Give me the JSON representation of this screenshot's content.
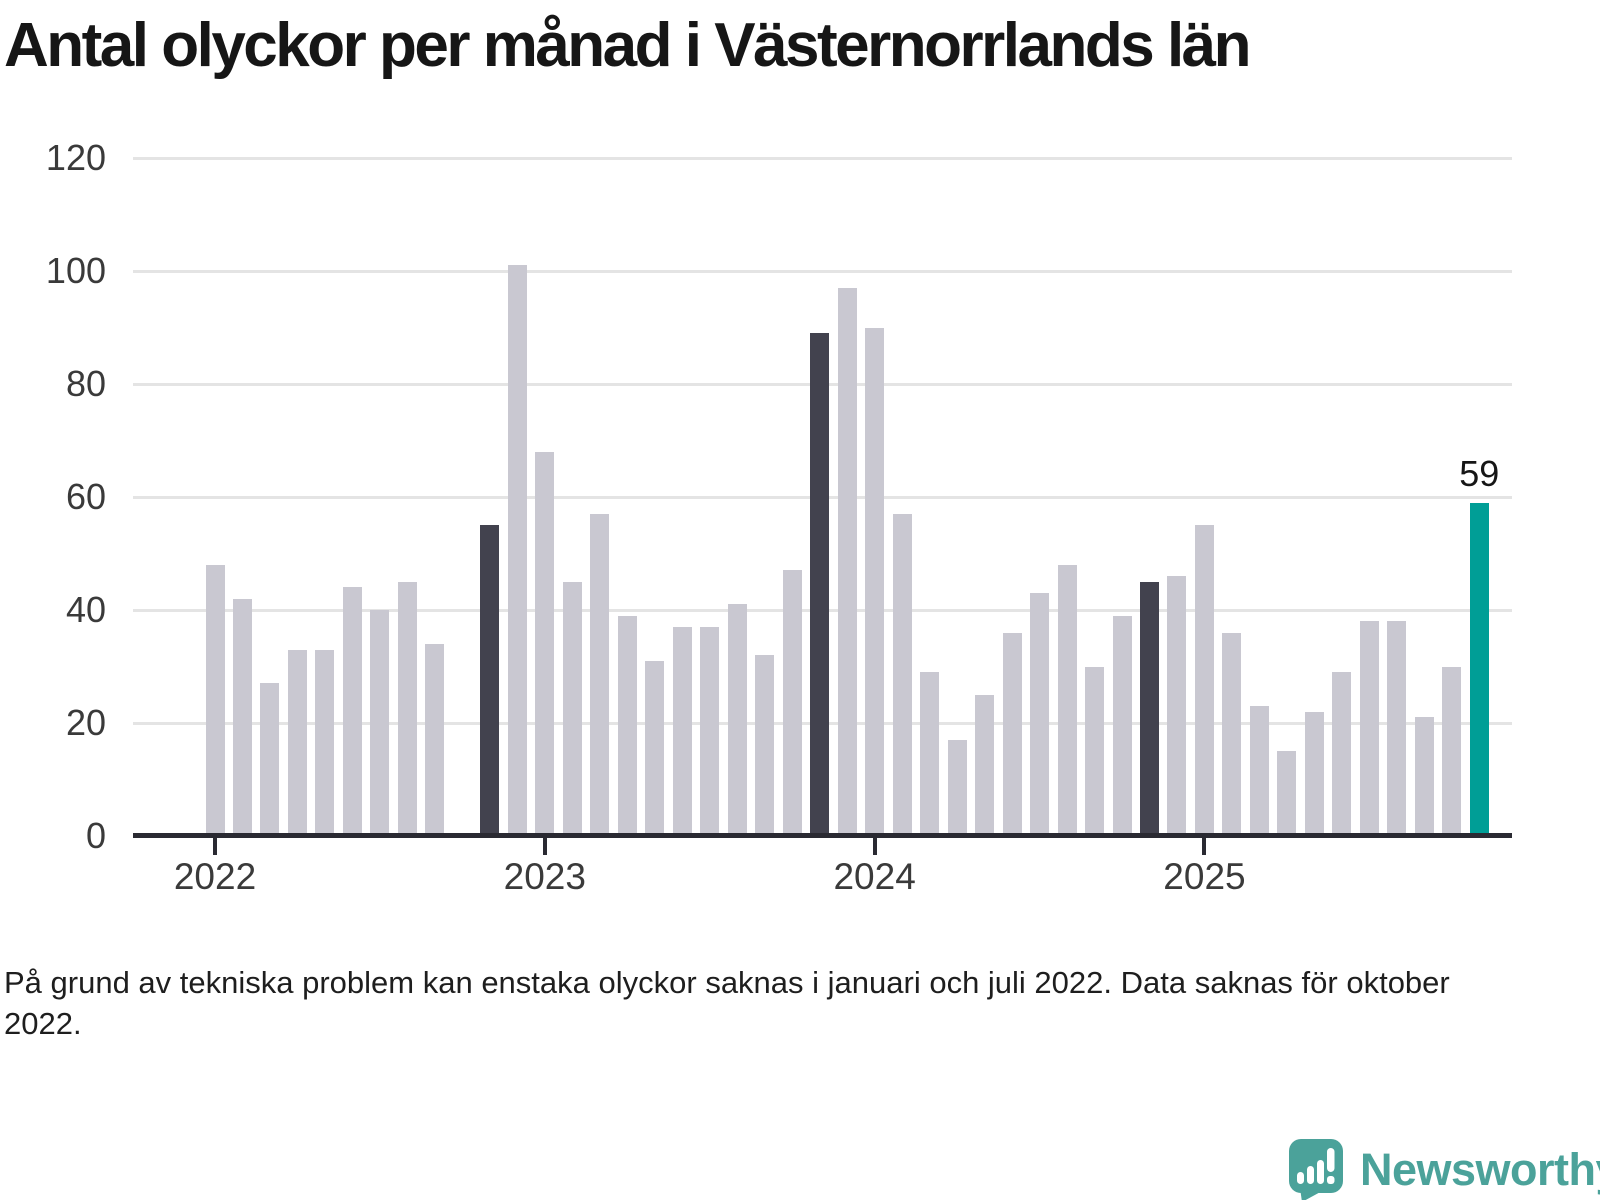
{
  "chart_data": {
    "type": "bar",
    "title": "Antal olyckor per månad i Västernorrlands län",
    "xlabel": "",
    "ylabel": "",
    "ylim": [
      0,
      120
    ],
    "yticks": [
      0,
      20,
      40,
      60,
      80,
      100,
      120
    ],
    "grid": true,
    "legend": "none",
    "current_value_label": "59",
    "year_ticks": [
      {
        "label": "2022",
        "month": "2022-01"
      },
      {
        "label": "2023",
        "month": "2023-01"
      },
      {
        "label": "2024",
        "month": "2024-01"
      },
      {
        "label": "2025",
        "month": "2025-01"
      }
    ],
    "missing_months": [
      "2022-10"
    ],
    "months": [
      {
        "month": "2022-01",
        "value": 48,
        "role": "default"
      },
      {
        "month": "2022-02",
        "value": 42,
        "role": "default"
      },
      {
        "month": "2022-03",
        "value": 27,
        "role": "default"
      },
      {
        "month": "2022-04",
        "value": 33,
        "role": "default"
      },
      {
        "month": "2022-05",
        "value": 33,
        "role": "default"
      },
      {
        "month": "2022-06",
        "value": 44,
        "role": "default"
      },
      {
        "month": "2022-07",
        "value": 40,
        "role": "default"
      },
      {
        "month": "2022-08",
        "value": 45,
        "role": "default"
      },
      {
        "month": "2022-09",
        "value": 34,
        "role": "default"
      },
      {
        "month": "2022-10",
        "value": null,
        "role": "missing"
      },
      {
        "month": "2022-11",
        "value": 55,
        "role": "highlight"
      },
      {
        "month": "2022-12",
        "value": 101,
        "role": "default"
      },
      {
        "month": "2023-01",
        "value": 68,
        "role": "default"
      },
      {
        "month": "2023-02",
        "value": 45,
        "role": "default"
      },
      {
        "month": "2023-03",
        "value": 57,
        "role": "default"
      },
      {
        "month": "2023-04",
        "value": 39,
        "role": "default"
      },
      {
        "month": "2023-05",
        "value": 31,
        "role": "default"
      },
      {
        "month": "2023-06",
        "value": 37,
        "role": "default"
      },
      {
        "month": "2023-07",
        "value": 37,
        "role": "default"
      },
      {
        "month": "2023-08",
        "value": 41,
        "role": "default"
      },
      {
        "month": "2023-09",
        "value": 32,
        "role": "default"
      },
      {
        "month": "2023-10",
        "value": 47,
        "role": "default"
      },
      {
        "month": "2023-11",
        "value": 89,
        "role": "highlight"
      },
      {
        "month": "2023-12",
        "value": 97,
        "role": "default"
      },
      {
        "month": "2024-01",
        "value": 90,
        "role": "default"
      },
      {
        "month": "2024-02",
        "value": 57,
        "role": "default"
      },
      {
        "month": "2024-03",
        "value": 29,
        "role": "default"
      },
      {
        "month": "2024-04",
        "value": 17,
        "role": "default"
      },
      {
        "month": "2024-05",
        "value": 25,
        "role": "default"
      },
      {
        "month": "2024-06",
        "value": 36,
        "role": "default"
      },
      {
        "month": "2024-07",
        "value": 43,
        "role": "default"
      },
      {
        "month": "2024-08",
        "value": 48,
        "role": "default"
      },
      {
        "month": "2024-09",
        "value": 30,
        "role": "default"
      },
      {
        "month": "2024-10",
        "value": 39,
        "role": "default"
      },
      {
        "month": "2024-11",
        "value": 45,
        "role": "highlight"
      },
      {
        "month": "2024-12",
        "value": 46,
        "role": "default"
      },
      {
        "month": "2025-01",
        "value": 55,
        "role": "default"
      },
      {
        "month": "2025-02",
        "value": 36,
        "role": "default"
      },
      {
        "month": "2025-03",
        "value": 23,
        "role": "default"
      },
      {
        "month": "2025-04",
        "value": 15,
        "role": "default"
      },
      {
        "month": "2025-05",
        "value": 22,
        "role": "default"
      },
      {
        "month": "2025-06",
        "value": 29,
        "role": "default"
      },
      {
        "month": "2025-07",
        "value": 38,
        "role": "default"
      },
      {
        "month": "2025-08",
        "value": 38,
        "role": "default"
      },
      {
        "month": "2025-09",
        "value": 21,
        "role": "default"
      },
      {
        "month": "2025-10",
        "value": 30,
        "role": "default"
      },
      {
        "month": "2025-11",
        "value": 59,
        "role": "current"
      }
    ],
    "colors": {
      "default": "#c9c8d1",
      "highlight": "#42424e",
      "current": "#009e96",
      "gridline": "#e4e4e4",
      "axis_line": "#2a2a32",
      "label_text": "#3a3a3a",
      "title_text": "#161616"
    }
  },
  "footnote": {
    "text": "På grund av tekniska problem kan enstaka olyckor saknas i januari och juli 2022. Data saknas för oktober 2022."
  },
  "branding": {
    "name": "Newsworthy",
    "color": "#4ba29a"
  }
}
